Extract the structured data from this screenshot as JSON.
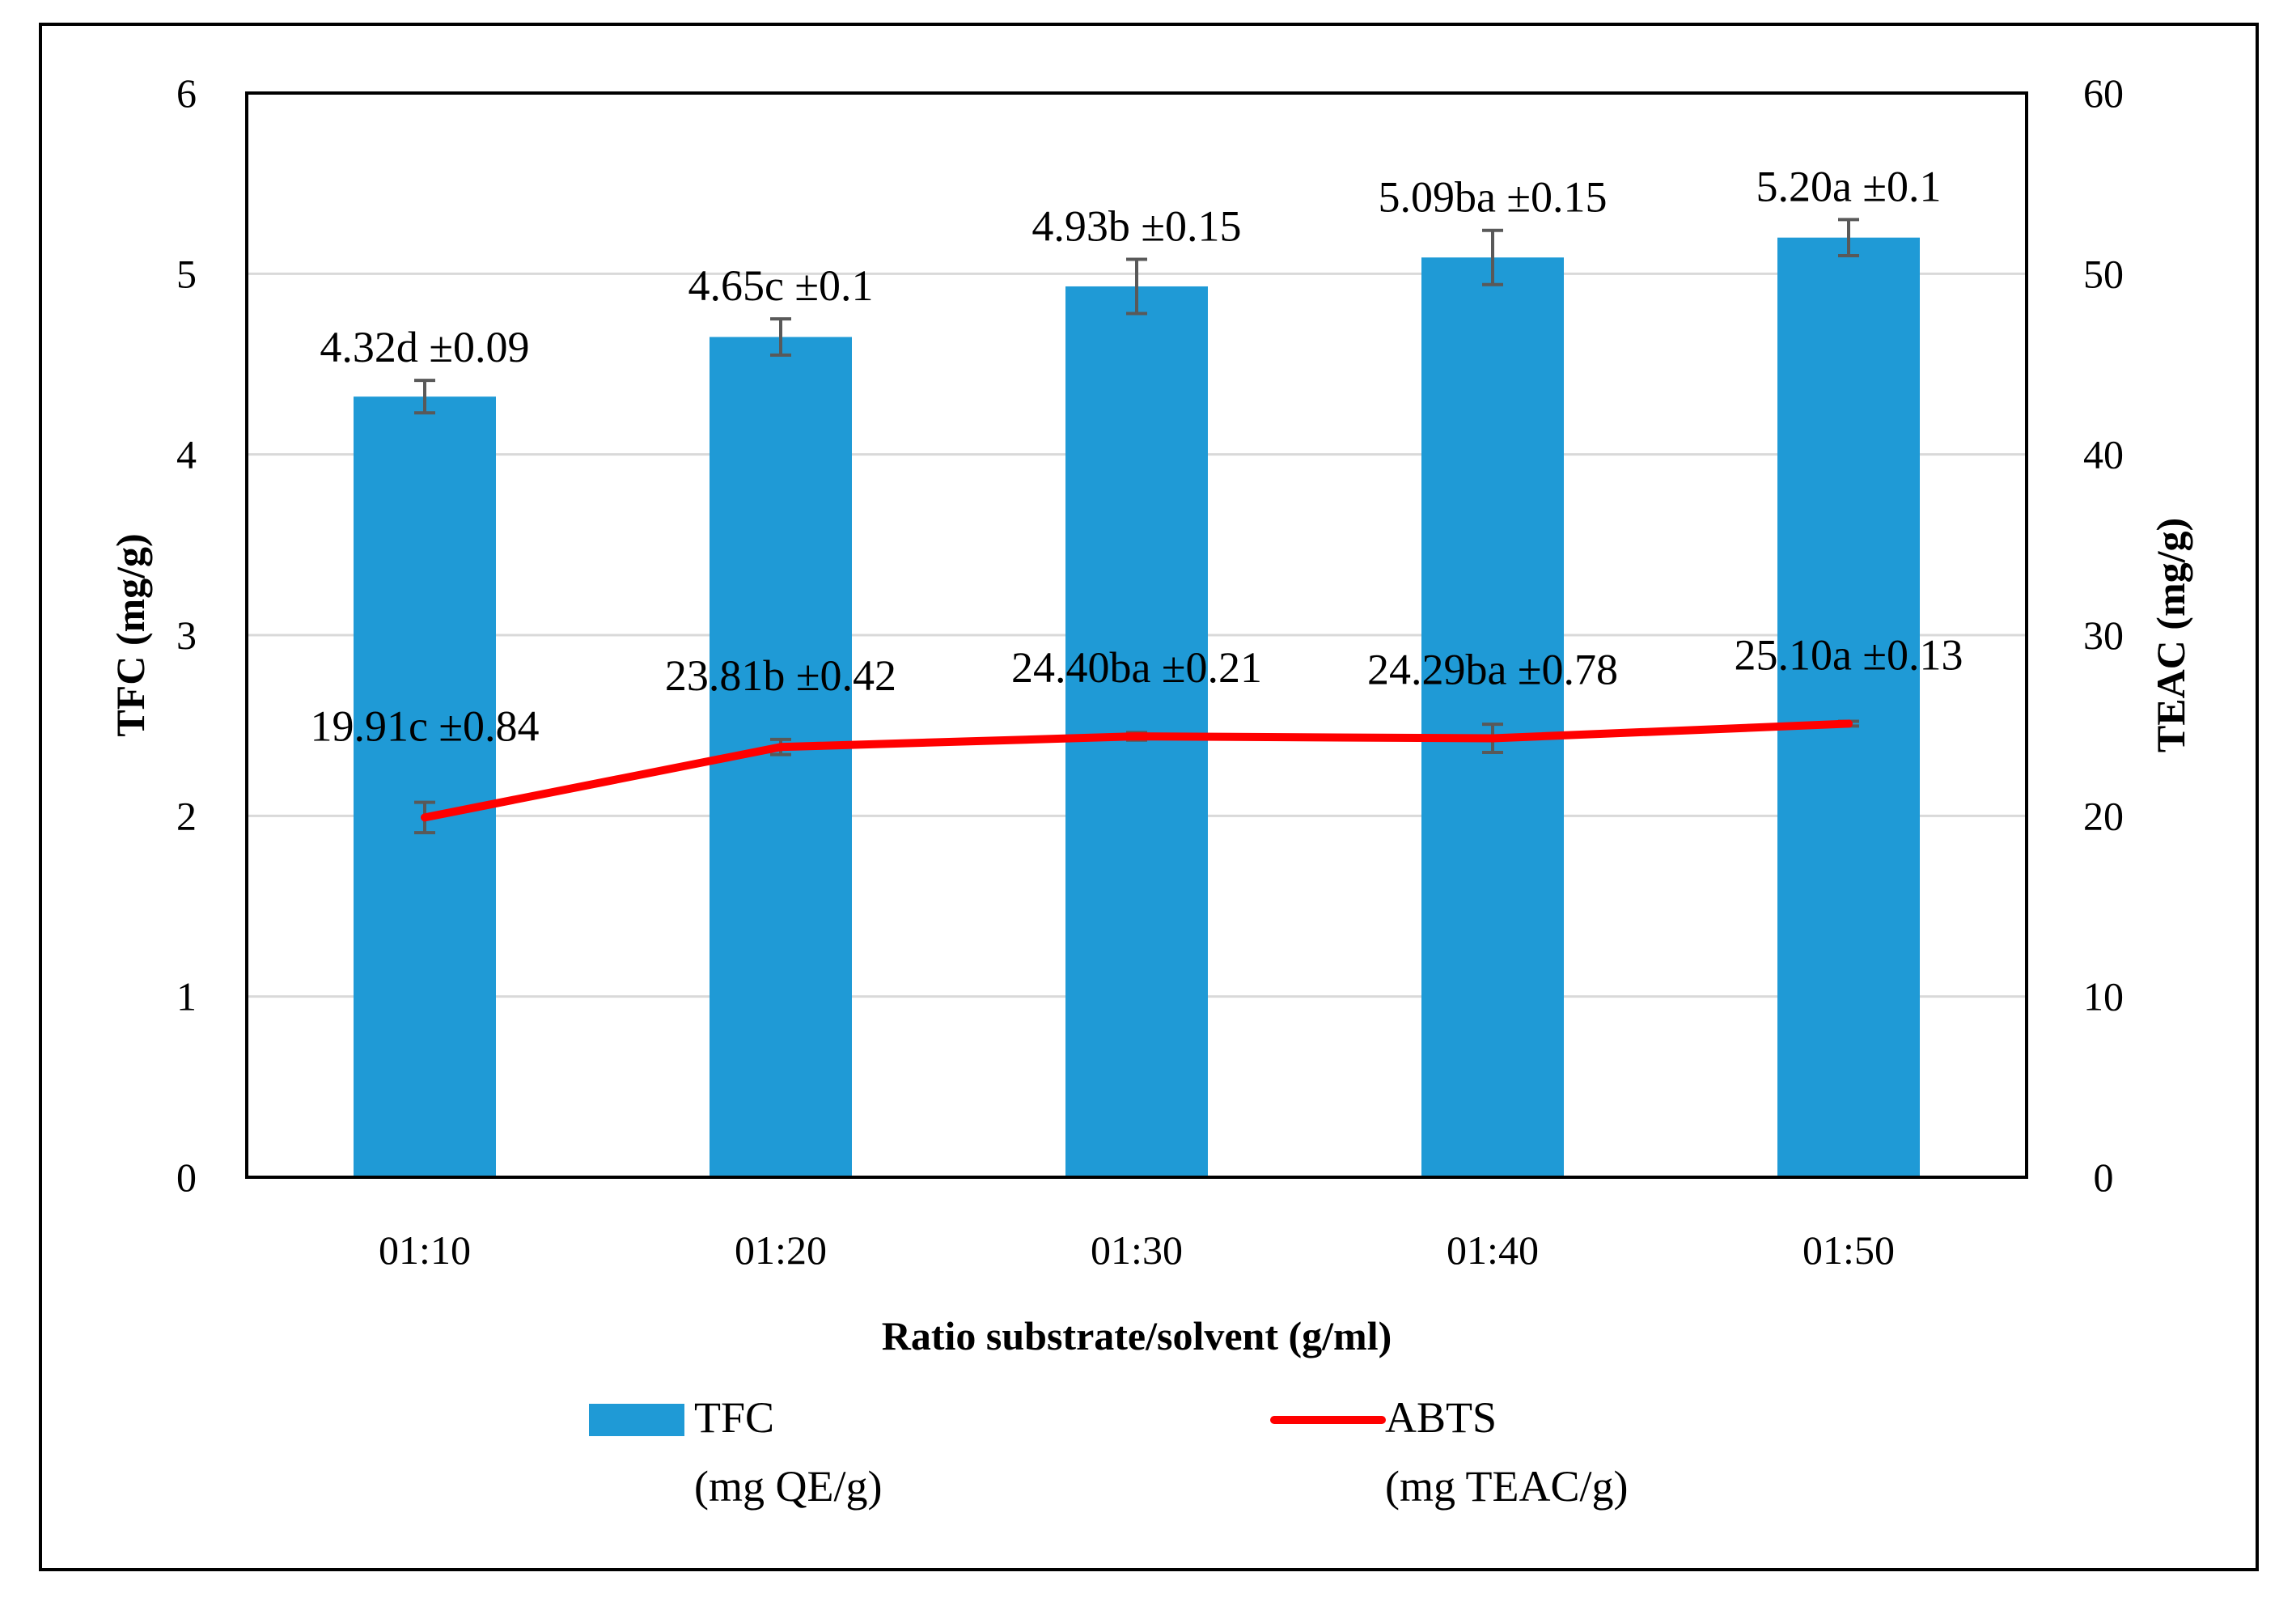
{
  "chart_data": {
    "type": "bar+line",
    "xlabel": "Ratio substrate/solvent (g/ml)",
    "ylabel_left": "TFC (mg/g)",
    "ylabel_right": "TEAC (mg/g)",
    "ylim_left": [
      0,
      6
    ],
    "ylim_right": [
      0,
      60
    ],
    "yticks_left": [
      "0",
      "1",
      "2",
      "3",
      "4",
      "5",
      "6"
    ],
    "yticks_right": [
      "0",
      "10",
      "20",
      "30",
      "40",
      "50",
      "60"
    ],
    "categories": [
      "01:10",
      "01:20",
      "01:30",
      "01:40",
      "01:50"
    ],
    "grid": true,
    "series": [
      {
        "name": "TFC",
        "unit": "(mg QE/g)",
        "type": "bar",
        "axis": "left",
        "color": "#1f9ad6",
        "values": [
          4.32,
          4.65,
          4.93,
          5.09,
          5.2
        ],
        "errors": [
          0.09,
          0.1,
          0.15,
          0.15,
          0.1
        ],
        "labels": [
          "4.32d ±0.09",
          "4.65c ±0.1",
          "4.93b ±0.15",
          "5.09ba ±0.15",
          "5.20a ±0.1"
        ]
      },
      {
        "name": "ABTS",
        "unit": "(mg TEAC/g)",
        "type": "line",
        "axis": "right",
        "color": "#ff0000",
        "values": [
          19.91,
          23.81,
          24.4,
          24.29,
          25.1
        ],
        "errors": [
          0.84,
          0.42,
          0.21,
          0.78,
          0.13
        ],
        "labels": [
          "19.91c ±0.84",
          "23.81b ±0.42",
          "24.40ba ±0.21",
          "24.29ba ±0.78",
          "25.10a ±0.13"
        ]
      }
    ],
    "legend": {
      "position": "bottom"
    },
    "colors": {
      "grid": "#d9d9d9",
      "error_bar": "#595959",
      "frame": "#000000"
    }
  }
}
